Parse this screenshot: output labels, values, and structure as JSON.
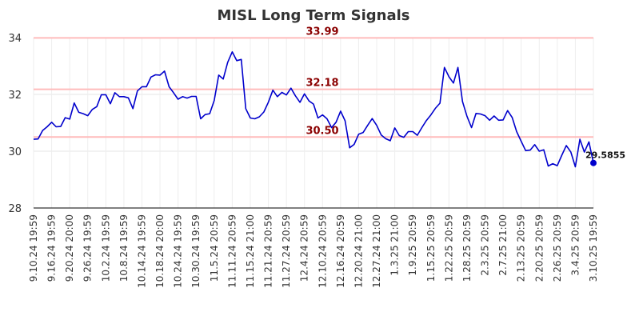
{
  "chart_data": {
    "type": "line",
    "title": "MISL Long Term Signals",
    "xlabel": "",
    "ylabel": "",
    "ylim": [
      28,
      34
    ],
    "yticks": [
      "28",
      "30",
      "32",
      "34"
    ],
    "xtick_labels": [
      "9.10.24 19:59",
      "9.16.24 19:59",
      "9.20.24 20:00",
      "9.26.24 19:59",
      "10.2.24 19:59",
      "10.8.24 19:59",
      "10.14.24 19:59",
      "10.18.24 20:00",
      "10.24.24 19:59",
      "10.30.24 19:59",
      "11.5.24 20:59",
      "11.11.24 20:59",
      "11.15.24 21:00",
      "11.21.24 20:59",
      "11.27.24 20:59",
      "12.4.24 20:59",
      "12.10.24 20:59",
      "12.16.24 20:59",
      "12.20.24 21:00",
      "12.27.24 21:00",
      "1.3.25 21:00",
      "1.9.25 20:59",
      "1.15.25 20:59",
      "1.22.25 20:59",
      "1.28.25 20:59",
      "2.3.25 20:59",
      "2.7.25 21:00",
      "2.13.25 20:59",
      "2.20.25 20:59",
      "2.26.25 20:59",
      "3.4.25 20:59",
      "3.10.25 19:59"
    ],
    "grid": true,
    "line_color": "#0000cc",
    "reference_line_color": "#ffbbbb",
    "reference_label_color": "#8b0000",
    "reference_lines": [
      {
        "value": 33.99,
        "label": "33.99"
      },
      {
        "value": 32.18,
        "label": "32.18"
      },
      {
        "value": 30.5,
        "label": "30.50"
      }
    ],
    "last_point_label": "29.5855",
    "series": [
      {
        "values": [
          30.42,
          30.43,
          30.73,
          30.86,
          31.02,
          30.86,
          30.87,
          31.18,
          31.13,
          31.7,
          31.37,
          31.32,
          31.25,
          31.47,
          31.57,
          31.99,
          31.99,
          31.67,
          32.06,
          31.92,
          31.92,
          31.88,
          31.5,
          32.12,
          32.27,
          32.27,
          32.61,
          32.69,
          32.68,
          32.82,
          32.27,
          32.06,
          31.83,
          31.92,
          31.87,
          31.93,
          31.93,
          31.14,
          31.29,
          31.32,
          31.78,
          32.68,
          32.54,
          33.13,
          33.5,
          33.19,
          33.23,
          31.5,
          31.17,
          31.14,
          31.21,
          31.38,
          31.72,
          32.15,
          31.92,
          32.07,
          31.98,
          32.22,
          31.95,
          31.72,
          32.02,
          31.77,
          31.66,
          31.17,
          31.28,
          31.14,
          30.83,
          31.02,
          31.41,
          31.07,
          30.12,
          30.24,
          30.6,
          30.66,
          30.91,
          31.15,
          30.91,
          30.57,
          30.44,
          30.37,
          30.82,
          30.55,
          30.49,
          30.69,
          30.69,
          30.56,
          30.83,
          31.08,
          31.28,
          31.51,
          31.69,
          32.95,
          32.62,
          32.4,
          32.95,
          31.75,
          31.23,
          30.83,
          31.33,
          31.31,
          31.25,
          31.09,
          31.24,
          31.09,
          31.1,
          31.43,
          31.19,
          30.69,
          30.35,
          30.02,
          30.04,
          30.23,
          30.0,
          30.05,
          29.48,
          29.56,
          29.49,
          29.86,
          30.2,
          29.97,
          29.45,
          30.42,
          29.97,
          30.33,
          29.5855
        ]
      }
    ]
  }
}
